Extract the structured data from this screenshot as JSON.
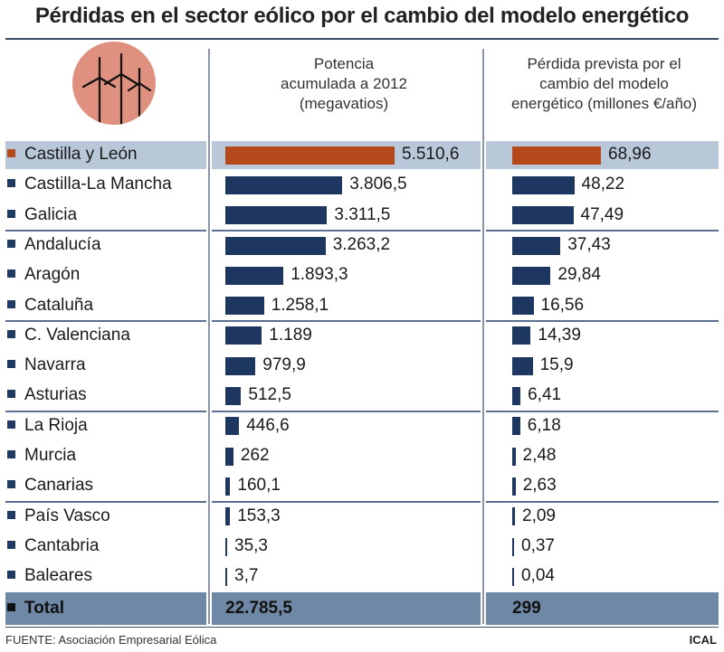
{
  "chart_data": {
    "type": "bar",
    "title": "Pérdidas en el sector eólico por el cambio del modelo energético",
    "series": [
      {
        "name": "Potencia acumulada a 2012 (megavatios)",
        "header_lines": [
          "Potencia",
          "acumulada a 2012",
          "(megavatios)"
        ],
        "values": [
          5510.6,
          3806.5,
          3311.5,
          3263.2,
          1893.3,
          1258.1,
          1189,
          979.9,
          512.5,
          446.6,
          262,
          160.1,
          153.3,
          35.3,
          3.7
        ],
        "labels": [
          "5.510,6",
          "3.806,5",
          "3.311,5",
          "3.263,2",
          "1.893,3",
          "1.258,1",
          "1.189",
          "979,9",
          "512,5",
          "446,6",
          "262",
          "160,1",
          "153,3",
          "35,3",
          "3,7"
        ],
        "max": 5510.6,
        "total": "22.785,5"
      },
      {
        "name": "Pérdida prevista por el cambio del modelo energético (millones €/año)",
        "header_lines": [
          "Pérdida prevista por el",
          "cambio del modelo",
          "energético (millones €/año)"
        ],
        "values": [
          68.96,
          48.22,
          47.49,
          37.43,
          29.84,
          16.56,
          14.39,
          15.9,
          6.41,
          6.18,
          2.48,
          2.63,
          2.09,
          0.37,
          0.04
        ],
        "labels": [
          "68,96",
          "48,22",
          "47,49",
          "37,43",
          "29,84",
          "16,56",
          "14,39",
          "15,9",
          "6,41",
          "6,18",
          "2,48",
          "2,63",
          "2,09",
          "0,37",
          "0,04"
        ],
        "max": 68.96,
        "total": "299"
      }
    ],
    "categories": [
      "Castilla y León",
      "Castilla-La Mancha",
      "Galicia",
      "Andalucía",
      "Aragón",
      "Cataluña",
      "C. Valenciana",
      "Navarra",
      "Asturias",
      "La Rioja",
      "Murcia",
      "Canarias",
      "País Vasco",
      "Cantabria",
      "Baleares"
    ],
    "highlight_index": 0,
    "total_label": "Total",
    "colors": {
      "highlight": "#b44a1c",
      "bar": "#1e3760",
      "highlight_row": "#b9c8d9",
      "total_row": "#6e88a6"
    }
  },
  "footer": {
    "source": "FUENTE: Asociación Empresarial Eólica",
    "brand": "ICAL"
  },
  "logo": {
    "icon": "wind-turbine-icon"
  }
}
